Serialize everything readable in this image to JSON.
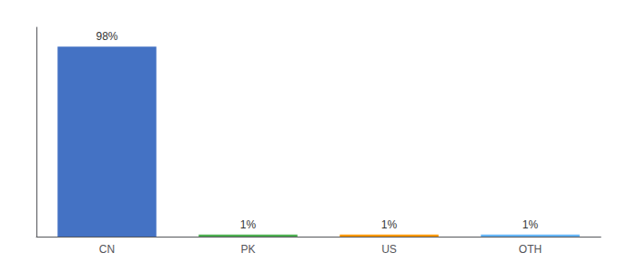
{
  "chart_data": {
    "type": "bar",
    "categories": [
      "CN",
      "PK",
      "US",
      "OTH"
    ],
    "values": [
      98,
      1,
      1,
      1
    ],
    "value_labels": [
      "98%",
      "1%",
      "1%",
      "1%"
    ],
    "colors": [
      "#4472c4",
      "#4caf50",
      "#ff9800",
      "#64b5f6"
    ],
    "ylim": [
      0,
      108
    ],
    "grid": false,
    "data_labels": true,
    "tick_labels": "x"
  }
}
